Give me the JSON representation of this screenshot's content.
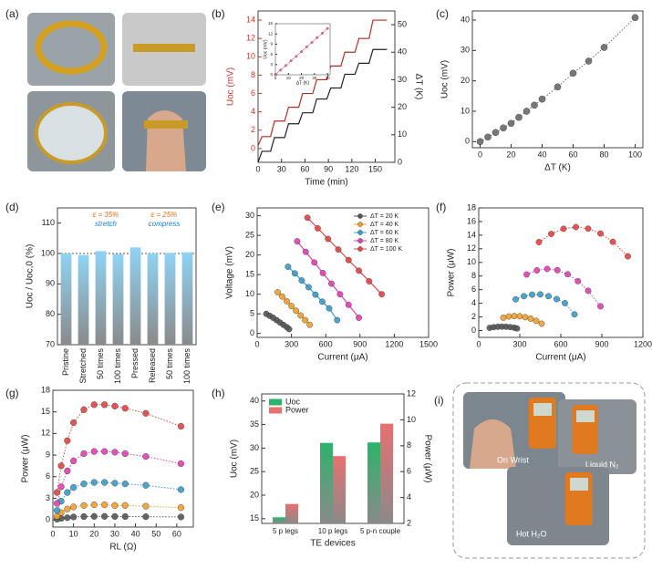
{
  "panels": {
    "a": {
      "label": "(a)"
    },
    "i": {
      "label": "(i)",
      "captions": [
        "On Wrist",
        "Liquid N₂",
        "Hot H₂O"
      ]
    }
  },
  "chart_data": [
    {
      "label": "(b)",
      "type": "line",
      "xlabel": "Time (min)",
      "ylabel": "Uoc (mV)",
      "y2label": "ΔT (K)",
      "xlim": [
        0,
        175
      ],
      "xticks": [
        0,
        30,
        60,
        90,
        120,
        150
      ],
      "ylim": [
        -1.5,
        15
      ],
      "yticks": [
        0,
        2,
        4,
        6,
        8,
        10,
        12,
        14
      ],
      "y_color": "#c0392b",
      "y2lim": [
        0,
        55
      ],
      "y2ticks": [
        0,
        10,
        20,
        30,
        40,
        50
      ],
      "series": [
        {
          "color": "#b03028",
          "axis": "y",
          "x": [
            0,
            5,
            16,
            21,
            34,
            39,
            52,
            57,
            70,
            75,
            88,
            93,
            106,
            111,
            124,
            129,
            142,
            147,
            165
          ],
          "values": [
            0.3,
            1.3,
            1.3,
            3,
            3,
            4.5,
            4.5,
            6,
            6,
            7.5,
            7.5,
            9,
            9,
            10.5,
            10.5,
            12,
            12,
            14,
            14
          ]
        },
        {
          "color": "#222222",
          "axis": "y2",
          "x": [
            0,
            5,
            16,
            21,
            34,
            39,
            52,
            57,
            70,
            75,
            88,
            93,
            106,
            111,
            124,
            129,
            142,
            147,
            165
          ],
          "values": [
            0,
            4,
            4,
            9,
            9,
            14,
            14,
            18,
            18,
            23,
            23,
            27,
            27,
            32,
            32,
            36,
            36,
            41,
            41
          ]
        }
      ]
    },
    {
      "type": "line",
      "markers": true,
      "xlabel": "ΔT (K)",
      "ylabel": "Uoc (mV)",
      "xlim": [
        0,
        42
      ],
      "xticks": [
        0,
        10,
        20,
        30,
        40
      ],
      "ylim": [
        0,
        15
      ],
      "yticks": [
        0,
        3,
        6,
        9,
        12,
        15
      ],
      "series": [
        {
          "color": "#e06080",
          "x": [
            0,
            4,
            8,
            12,
            16,
            20,
            24,
            28,
            32,
            36,
            40
          ],
          "values": [
            0,
            1.4,
            2.7,
            4.1,
            5.4,
            6.8,
            8.2,
            9.5,
            10.9,
            12.2,
            13.6
          ]
        }
      ]
    },
    {
      "label": "(c)",
      "type": "line",
      "markers": true,
      "line": "dotted",
      "xlabel": "ΔT (K)",
      "ylabel": "Uoc (mV)",
      "xlim": [
        -5,
        105
      ],
      "xticks": [
        0,
        20,
        40,
        60,
        80,
        100
      ],
      "ylim": [
        -2,
        43
      ],
      "yticks": [
        0,
        10,
        20,
        30,
        40
      ],
      "series": [
        {
          "color": "#6a6a6a",
          "x": [
            0,
            5,
            10,
            15,
            20,
            25,
            30,
            35,
            40,
            50,
            60,
            70,
            80,
            100
          ],
          "values": [
            0,
            1.5,
            3,
            4.5,
            6,
            8,
            10,
            12,
            14,
            18,
            22.5,
            26.5,
            31,
            40.8
          ]
        }
      ]
    },
    {
      "label": "(d)",
      "type": "bar",
      "ylabel": "Uoc / Uoc,0 (%)",
      "categories": [
        "Pristine",
        "Stretched",
        "50 times",
        "100 times",
        "Pressed",
        "Released",
        "50 times",
        "100 times"
      ],
      "ylim": [
        70,
        115
      ],
      "yticks": [
        70,
        80,
        90,
        100,
        110
      ],
      "refline": 100,
      "annotations": [
        {
          "text": "ε = 35%",
          "color": "#e07020"
        },
        {
          "text": "stretch",
          "color": "#2080c0"
        },
        {
          "text": "ε = 25%",
          "color": "#e07020"
        },
        {
          "text": "compress",
          "color": "#2080c0"
        }
      ],
      "series": [
        {
          "color": "#8fd3f4",
          "values": [
            100,
            99.5,
            100.8,
            99.8,
            102,
            100,
            100.2,
            100.4
          ]
        }
      ]
    },
    {
      "label": "(e)",
      "type": "line",
      "markers": true,
      "xlabel": "Current (μA)",
      "ylabel": "Voltage (mV)",
      "xlim": [
        0,
        1500
      ],
      "xticks": [
        0,
        300,
        600,
        900,
        1200,
        1500
      ],
      "ylim": [
        -1,
        32
      ],
      "yticks": [
        0,
        5,
        10,
        15,
        20,
        25,
        30
      ],
      "legend": "upper right",
      "series": [
        {
          "name": "ΔT = 20 K",
          "color": "#555555",
          "x": [
            80,
            110,
            140,
            170,
            200,
            230,
            260,
            280
          ],
          "values": [
            5,
            4.5,
            4,
            3.4,
            2.8,
            2.2,
            1.6,
            1.1
          ]
        },
        {
          "name": "ΔT = 40 K",
          "color": "#f0a030",
          "x": [
            180,
            220,
            260,
            300,
            340,
            380,
            420,
            460
          ],
          "values": [
            10.5,
            9.4,
            8.2,
            7,
            5.8,
            4.6,
            3.4,
            2.2
          ]
        },
        {
          "name": "ΔT = 60 K",
          "color": "#3a9cc8",
          "x": [
            270,
            330,
            390,
            450,
            510,
            570,
            630,
            700
          ],
          "values": [
            17,
            15.3,
            13.5,
            11.8,
            9.9,
            8.1,
            6.4,
            3.4
          ]
        },
        {
          "name": "ΔT = 80 K",
          "color": "#e040b0",
          "x": [
            350,
            425,
            500,
            575,
            650,
            725,
            800,
            890
          ],
          "values": [
            23.5,
            20.8,
            18.1,
            15.4,
            12.7,
            10,
            7.3,
            4
          ]
        },
        {
          "name": "ΔT = 100 K",
          "color": "#e04545",
          "x": [
            440,
            530,
            620,
            710,
            800,
            890,
            980,
            1090
          ],
          "values": [
            29.5,
            26.8,
            24.1,
            21.4,
            18.7,
            16,
            13.3,
            10
          ]
        }
      ]
    },
    {
      "label": "(f)",
      "type": "line",
      "markers": true,
      "line": "dotted",
      "xlabel": "Current (μA)",
      "ylabel": "Power (μW)",
      "xlim": [
        0,
        1200
      ],
      "xticks": [
        0,
        300,
        600,
        900,
        1200
      ],
      "ylim": [
        -1,
        18
      ],
      "yticks": [
        0,
        2,
        4,
        6,
        8,
        10,
        12,
        14,
        16,
        18
      ],
      "series": [
        {
          "color": "#555555",
          "x": [
            80,
            110,
            140,
            170,
            200,
            230,
            260,
            280
          ],
          "values": [
            0.4,
            0.5,
            0.56,
            0.58,
            0.56,
            0.51,
            0.42,
            0.31
          ]
        },
        {
          "color": "#f0a030",
          "x": [
            180,
            220,
            260,
            300,
            340,
            380,
            420,
            460
          ],
          "values": [
            1.89,
            2.07,
            2.13,
            2.1,
            1.97,
            1.75,
            1.43,
            1.01
          ]
        },
        {
          "color": "#3a9cc8",
          "x": [
            270,
            330,
            390,
            450,
            510,
            570,
            630,
            700
          ],
          "values": [
            4.59,
            5.05,
            5.27,
            5.31,
            5.05,
            4.62,
            4.03,
            2.38
          ]
        },
        {
          "color": "#e040b0",
          "x": [
            350,
            425,
            500,
            575,
            650,
            725,
            800,
            890
          ],
          "values": [
            8.23,
            8.84,
            9.05,
            8.86,
            8.26,
            7.25,
            5.84,
            3.56
          ]
        },
        {
          "color": "#e04545",
          "x": [
            440,
            530,
            620,
            710,
            800,
            890,
            980,
            1090
          ],
          "values": [
            12.98,
            14.18,
            14.94,
            15.19,
            14.96,
            14.24,
            13.03,
            10.9
          ]
        }
      ]
    },
    {
      "label": "(g)",
      "type": "line",
      "markers": true,
      "line": "dotted",
      "xlabel": "RL (Ω)",
      "ylabel": "Power (μW)",
      "xlim": [
        0,
        68
      ],
      "xticks": [
        0,
        10,
        20,
        30,
        40,
        50,
        60
      ],
      "ylim": [
        -1,
        18
      ],
      "yticks": [
        0,
        3,
        6,
        9,
        12,
        15,
        18
      ],
      "series": [
        {
          "color": "#555555",
          "x": [
            2,
            4,
            7,
            10,
            15,
            20,
            25,
            30,
            35,
            45,
            62
          ],
          "values": [
            0.1,
            0.2,
            0.3,
            0.4,
            0.45,
            0.48,
            0.48,
            0.47,
            0.46,
            0.44,
            0.4
          ]
        },
        {
          "color": "#f0a030",
          "x": [
            2,
            4,
            7,
            10,
            15,
            20,
            25,
            30,
            35,
            45,
            62
          ],
          "values": [
            0.5,
            1,
            1.5,
            1.8,
            2,
            2.1,
            2.1,
            2,
            2,
            1.9,
            1.7
          ]
        },
        {
          "color": "#3a9cc8",
          "x": [
            2,
            4,
            7,
            10,
            15,
            20,
            25,
            30,
            35,
            45,
            62
          ],
          "values": [
            1.3,
            2.6,
            3.8,
            4.5,
            5,
            5.2,
            5.2,
            5.1,
            5,
            4.8,
            4.2
          ]
        },
        {
          "color": "#e040b0",
          "x": [
            2,
            4,
            7,
            10,
            15,
            20,
            25,
            30,
            35,
            45,
            62
          ],
          "values": [
            2.3,
            4.6,
            6.8,
            8.2,
            9.2,
            9.5,
            9.5,
            9.4,
            9.2,
            8.8,
            7.8
          ]
        },
        {
          "color": "#e04545",
          "x": [
            2,
            4,
            7,
            10,
            15,
            20,
            25,
            30,
            35,
            45,
            62
          ],
          "values": [
            3.8,
            7.5,
            11,
            13.5,
            15.3,
            16,
            16,
            15.8,
            15.5,
            14.8,
            13
          ]
        }
      ]
    },
    {
      "label": "(h)",
      "type": "bar",
      "xlabel": "TE devices",
      "ylabel": "Uoc (mV)",
      "y2label": "Power (μW)",
      "categories": [
        "5 p legs",
        "10 p legs",
        "5 p-n couple"
      ],
      "ylim": [
        14,
        41.5
      ],
      "yticks": [
        15,
        20,
        25,
        30,
        35,
        40
      ],
      "y2lim": [
        2,
        12
      ],
      "y2ticks": [
        2,
        4,
        6,
        8,
        10,
        12
      ],
      "legend": "upper left",
      "series": [
        {
          "name": "Uoc",
          "color": "#2db36a",
          "axis": "y",
          "values": [
            15.3,
            31.1,
            31.2
          ]
        },
        {
          "name": "Power",
          "color": "#e87070",
          "axis": "y2",
          "values": [
            3.5,
            7.2,
            9.7
          ]
        }
      ]
    }
  ]
}
